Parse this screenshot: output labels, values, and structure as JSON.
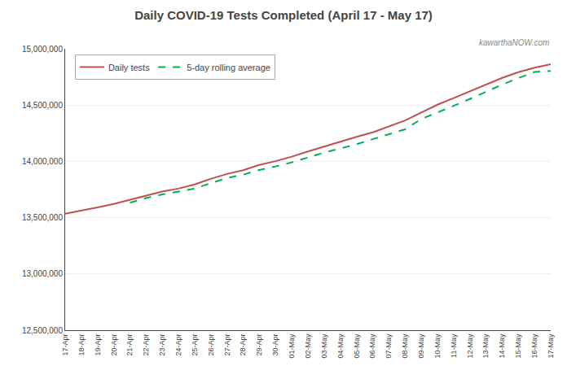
{
  "chart_data": {
    "type": "line",
    "title": "Daily COVID-19 Tests Completed (April 17 - May 17)",
    "categories": [
      "17-Apr",
      "18-Apr",
      "19-Apr",
      "20-Apr",
      "21-Apr",
      "22-Apr",
      "23-Apr",
      "24-Apr",
      "25-Apr",
      "26-Apr",
      "27-Apr",
      "28-Apr",
      "29-Apr",
      "30-Apr",
      "01-May",
      "02-May",
      "03-May",
      "04-May",
      "05-May",
      "06-May",
      "07-May",
      "08-May",
      "09-May",
      "10-May",
      "11-May",
      "12-May",
      "13-May",
      "14-May",
      "15-May",
      "16-May",
      "17-May"
    ],
    "series": [
      {
        "name": "Daily tests",
        "color": "#c0504d",
        "line_style": "solid",
        "values": [
          13535000,
          13562000,
          13591000,
          13622000,
          13658000,
          13698000,
          13732000,
          13758000,
          13795000,
          13845000,
          13888000,
          13922000,
          13968000,
          14002000,
          14042000,
          14088000,
          14132000,
          14178000,
          14218000,
          14258000,
          14308000,
          14363000,
          14433000,
          14503000,
          14562000,
          14622000,
          14682000,
          14742000,
          14792000,
          14832000,
          14862000
        ]
      },
      {
        "name": "5-day rolling average",
        "color": "#00b050",
        "line_style": "dashed",
        "values": [
          null,
          null,
          null,
          null,
          13633000,
          13674000,
          13706000,
          13734000,
          13758000,
          13807000,
          13852000,
          13882000,
          13924000,
          13955000,
          13991000,
          14034000,
          14078000,
          14114000,
          14152000,
          14197000,
          14242000,
          14285000,
          14376000,
          14433000,
          14493000,
          14554000,
          14620000,
          14682000,
          14740000,
          14794000,
          14804000
        ]
      }
    ],
    "ylim": [
      12500000,
      15000000
    ],
    "yticks": [
      {
        "value": 12500000,
        "label": "12,500,000"
      },
      {
        "value": 13000000,
        "label": "13,000,000"
      },
      {
        "value": 13500000,
        "label": "13,500,000"
      },
      {
        "value": 14000000,
        "label": "14,000,000"
      },
      {
        "value": 14500000,
        "label": "14,500,000"
      },
      {
        "value": 15000000,
        "label": "15,000,000"
      }
    ],
    "grid": true,
    "legend": "upper left",
    "annotations": [
      "kawarthaNOW.com"
    ]
  }
}
